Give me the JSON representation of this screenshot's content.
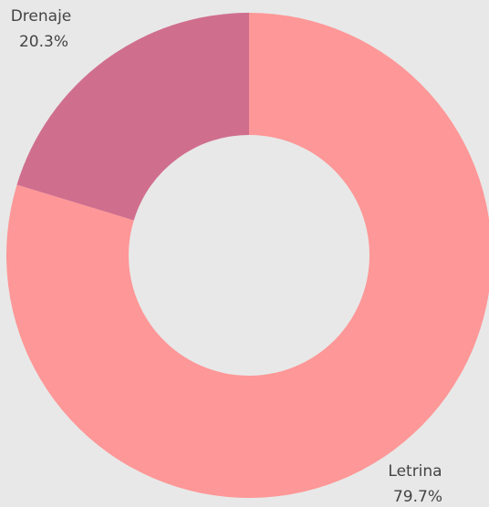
{
  "chart_data": {
    "type": "donut",
    "categories": [
      "Letrina",
      "Drenaje"
    ],
    "values": [
      79.7,
      20.3
    ],
    "value_labels": [
      "79.7%",
      "20.3%"
    ],
    "colors": [
      "#fe9797",
      "#d06e8e"
    ]
  }
}
